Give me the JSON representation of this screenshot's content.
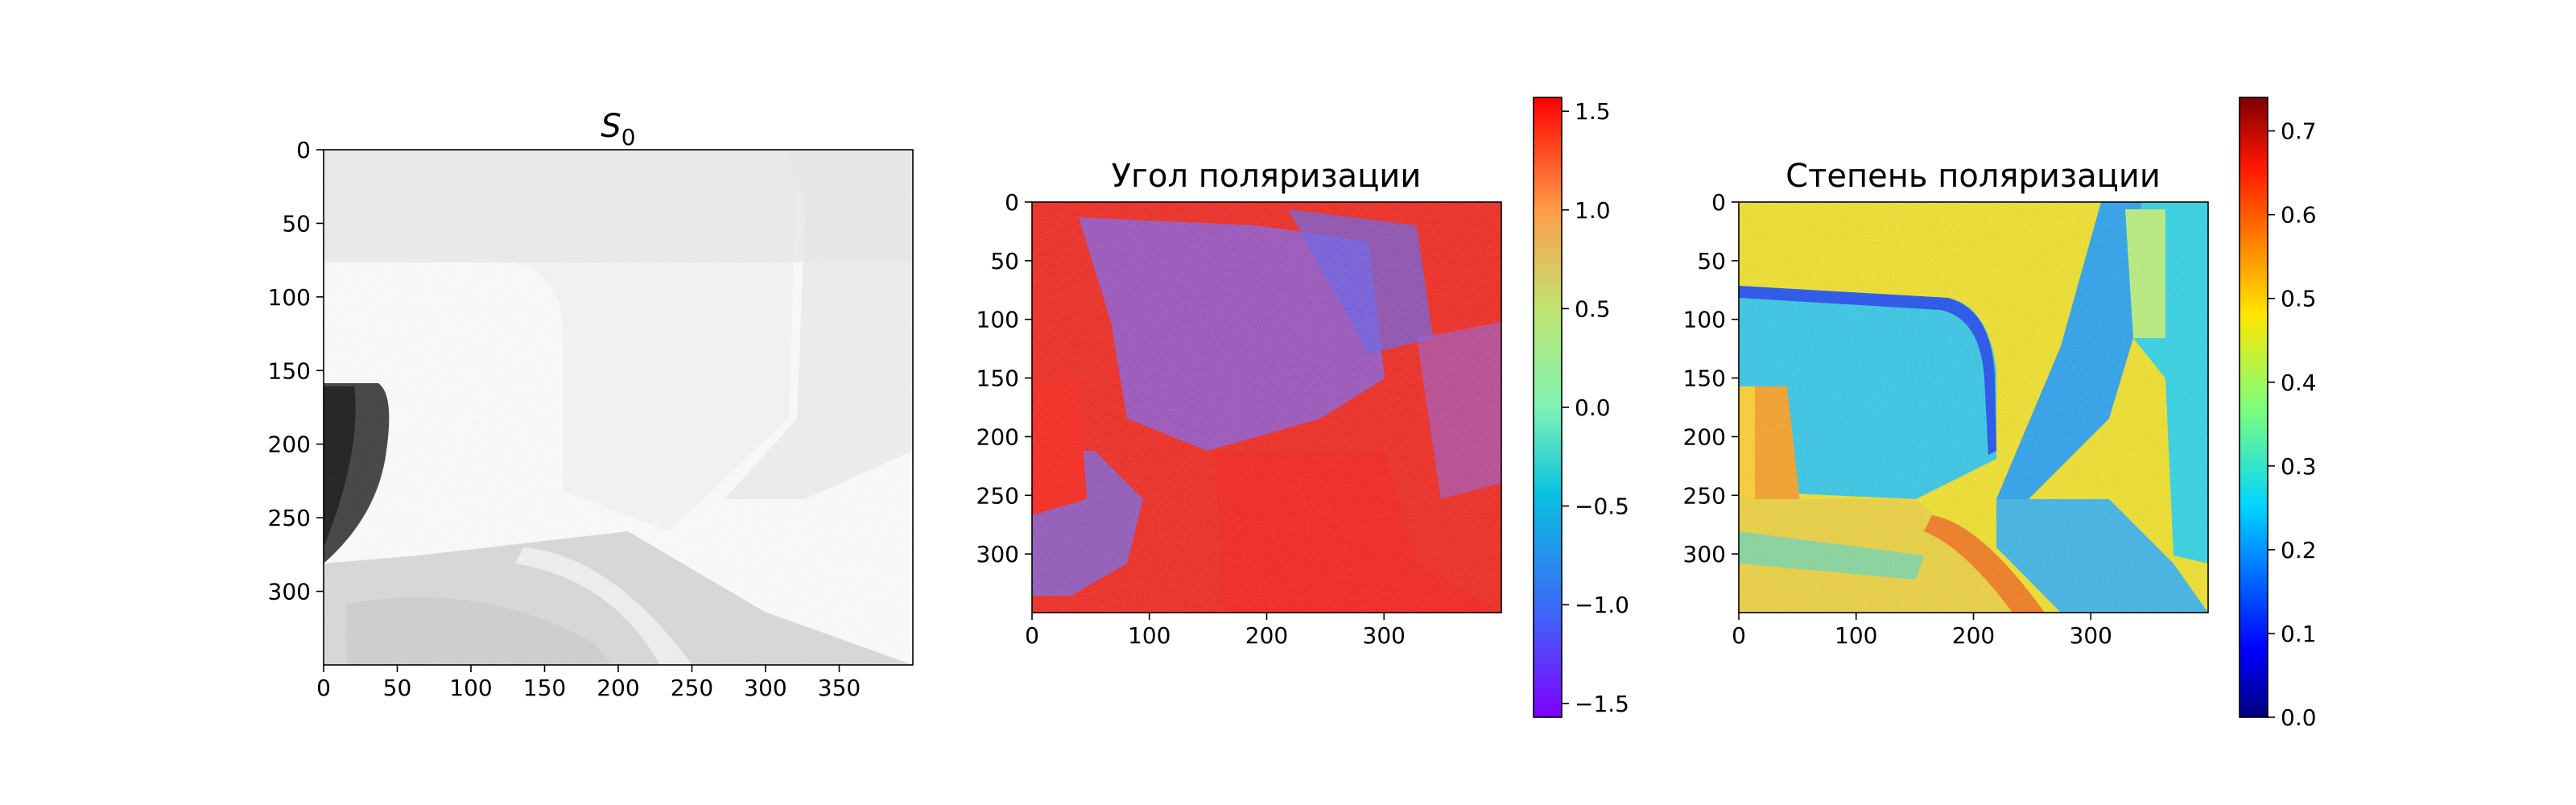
{
  "chart_data": [
    {
      "type": "heatmap",
      "title": "S",
      "title_subscript": "0",
      "colormap": "Greys",
      "x_ticks": [
        0,
        50,
        100,
        150,
        200,
        250,
        300,
        350
      ],
      "y_ticks": [
        0,
        50,
        100,
        150,
        200,
        250,
        300
      ],
      "xlim": [
        0,
        400
      ],
      "ylim": [
        350,
        0
      ],
      "colorbar": null
    },
    {
      "type": "heatmap",
      "title": "Угол поляризации",
      "colormap": "rainbow",
      "x_ticks": [
        0,
        100,
        200,
        300
      ],
      "y_ticks": [
        0,
        50,
        100,
        150,
        200,
        250,
        300
      ],
      "xlim": [
        0,
        400
      ],
      "ylim": [
        350,
        0
      ],
      "colorbar": {
        "range": [
          -1.57,
          1.57
        ],
        "ticks": [
          1.5,
          1.0,
          0.5,
          0.0,
          -0.5,
          -1.0,
          -1.5
        ],
        "tick_labels": [
          "1.5",
          "1.0",
          "0.5",
          "0.0",
          "−0.5",
          "−1.0",
          "−1.5"
        ]
      }
    },
    {
      "type": "heatmap",
      "title": "Степень поляризации",
      "colormap": "jet",
      "x_ticks": [
        0,
        100,
        200,
        300
      ],
      "y_ticks": [
        0,
        50,
        100,
        150,
        200,
        250,
        300
      ],
      "xlim": [
        0,
        400
      ],
      "ylim": [
        350,
        0
      ],
      "colorbar": {
        "range": [
          0.0,
          0.74
        ],
        "ticks": [
          0.7,
          0.6,
          0.5,
          0.4,
          0.3,
          0.2,
          0.1,
          0.0
        ],
        "tick_labels": [
          "0.7",
          "0.6",
          "0.5",
          "0.4",
          "0.3",
          "0.2",
          "0.1",
          "0.0"
        ]
      }
    }
  ]
}
